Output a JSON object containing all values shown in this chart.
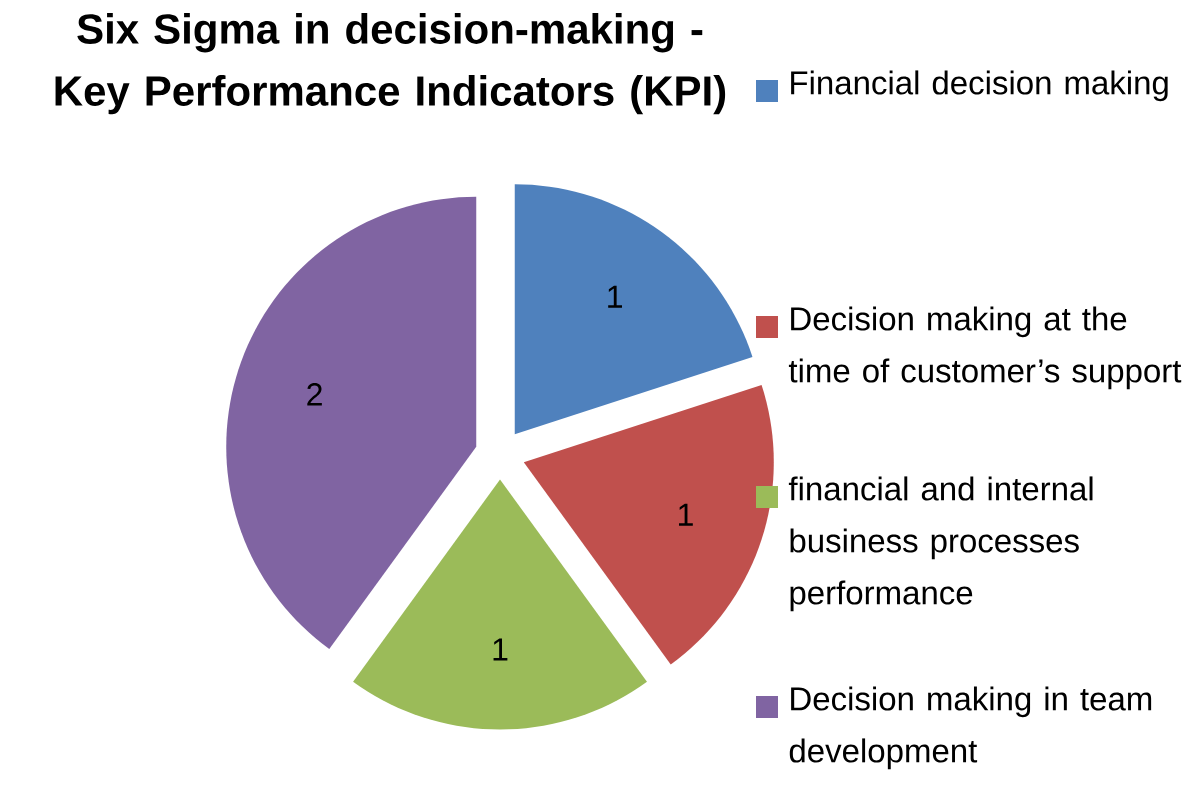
{
  "chart_data": {
    "type": "pie",
    "title": "Six Sigma in decision-making - Key Performance Indicators (KPI)",
    "categories": [
      "Financial decision making",
      "Decision making at the time of customer’s support",
      "financial and internal business processes performance",
      "Decision making in team development"
    ],
    "values": [
      1,
      1,
      1,
      2
    ],
    "colors": [
      "#4f81bd",
      "#c0504d",
      "#9bbb59",
      "#8064a2"
    ],
    "data_labels": true,
    "legend": "right"
  }
}
